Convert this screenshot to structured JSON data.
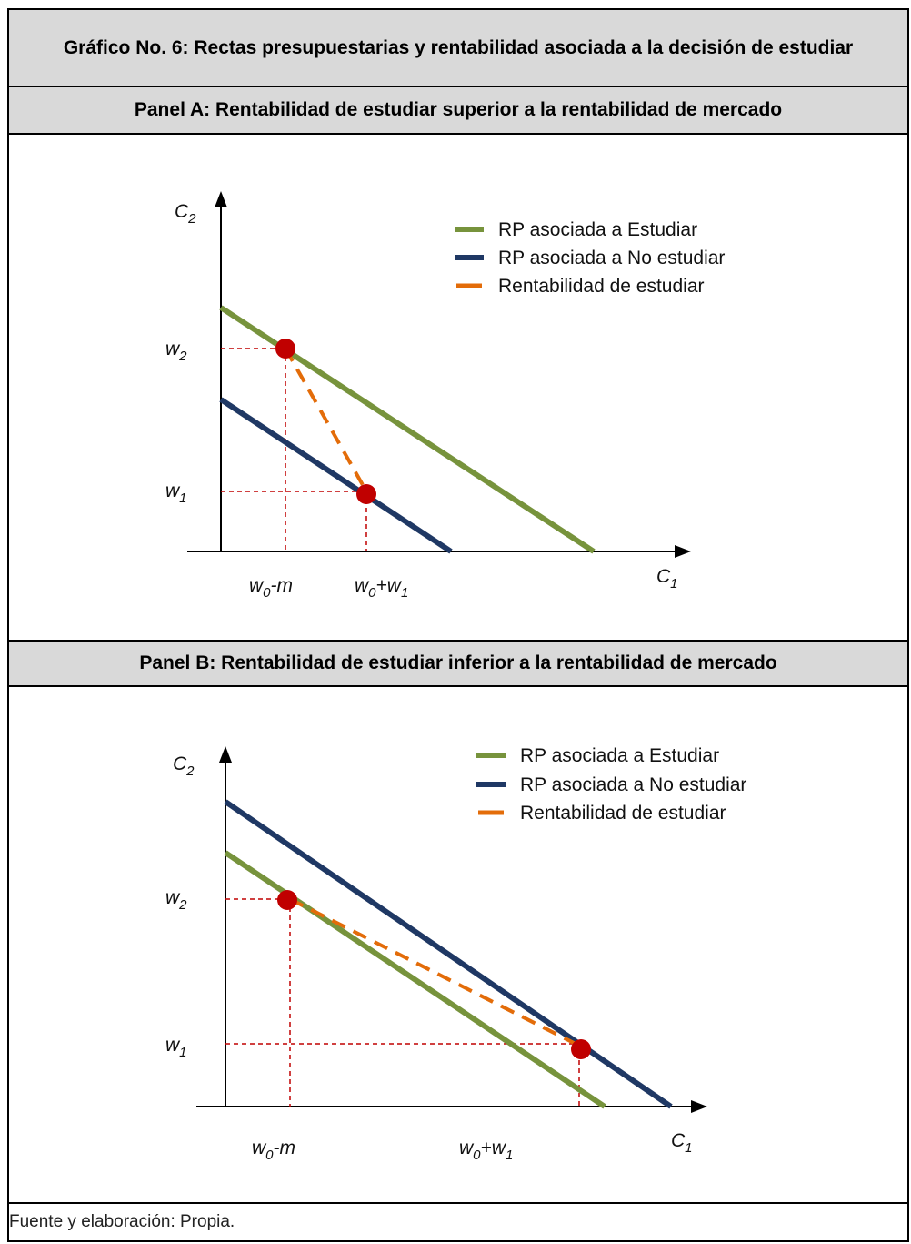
{
  "title": "Gráfico No. 6:  Rectas presupuestarias y rentabilidad asociada a la decisión de estudiar",
  "footer": "Fuente y elaboración: Propia.",
  "colors": {
    "green": "#77933c",
    "blue": "#1f3864",
    "orange": "#e36c09",
    "dot": "#c00000",
    "guide": "#c00000"
  },
  "panels": [
    {
      "heading": "Panel A: Rentabilidad de estudiar superior a la rentabilidad de mercado",
      "axis": {
        "y": "C",
        "y_sub": "2",
        "x": "C",
        "x_sub": "1"
      },
      "ylabels": {
        "w2": "w",
        "w2_sub": "2",
        "w1": "w",
        "w1_sub": "1"
      },
      "xlabels": {
        "a": "w",
        "a_sub": "0",
        "a_tail": "-m",
        "b": "w",
        "b_sub": "0",
        "b_mid": "+w",
        "b_sub2": "1"
      },
      "legend": [
        "RP asociada a Estudiar",
        "RP asociada a No estudiar",
        "Rentabilidad de estudiar"
      ]
    },
    {
      "heading": "Panel B: Rentabilidad de estudiar inferior a la rentabilidad de mercado",
      "axis": {
        "y": "C",
        "y_sub": "2",
        "x": "C",
        "x_sub": "1"
      },
      "ylabels": {
        "w2": "w",
        "w2_sub": "2",
        "w1": "w",
        "w1_sub": "1"
      },
      "xlabels": {
        "a": "w",
        "a_sub": "0",
        "a_tail": "-m",
        "b": "w",
        "b_sub": "0",
        "b_mid": "+w",
        "b_sub2": "1"
      },
      "legend": [
        "RP asociada a Estudiar",
        "RP asociada a No estudiar",
        "Rentabilidad de estudiar"
      ]
    }
  ]
}
